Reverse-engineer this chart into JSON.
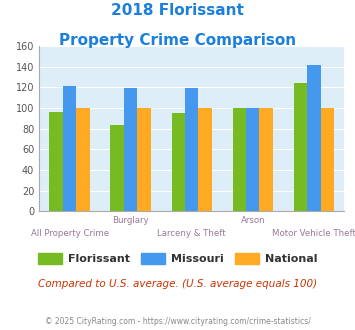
{
  "title_line1": "2018 Florissant",
  "title_line2": "Property Crime Comparison",
  "title_color": "#1a7fdd",
  "groups": [
    {
      "label": "All Property Crime",
      "florissant": 96,
      "missouri": 121,
      "national": 100
    },
    {
      "label": "Burglary",
      "florissant": 84,
      "missouri": 119,
      "national": 100
    },
    {
      "label": "Larceny & Theft",
      "florissant": 95,
      "missouri": 119,
      "national": 100
    },
    {
      "label": "Arson",
      "florissant": 100,
      "missouri": 100,
      "national": 100
    },
    {
      "label": "Motor Vehicle Theft",
      "florissant": 124,
      "missouri": 142,
      "national": 100
    }
  ],
  "color_florissant": "#77bb22",
  "color_missouri": "#4499ee",
  "color_national": "#ffaa22",
  "ylim": [
    0,
    160
  ],
  "yticks": [
    0,
    20,
    40,
    60,
    80,
    100,
    120,
    140,
    160
  ],
  "plot_bg": "#ddeef8",
  "legend_labels": [
    "Florissant",
    "Missouri",
    "National"
  ],
  "top_xlabels": [
    "",
    "Burglary",
    "",
    "Arson",
    ""
  ],
  "bottom_xlabels": [
    "All Property Crime",
    "",
    "Larceny & Theft",
    "",
    "Motor Vehicle Theft"
  ],
  "xlabel_color": "#997799",
  "footer_text": "Compared to U.S. average. (U.S. average equals 100)",
  "footer_color": "#cc3300",
  "copyright_text": "© 2025 CityRating.com - https://www.cityrating.com/crime-statistics/",
  "copyright_color": "#888888",
  "bar_width": 0.22
}
